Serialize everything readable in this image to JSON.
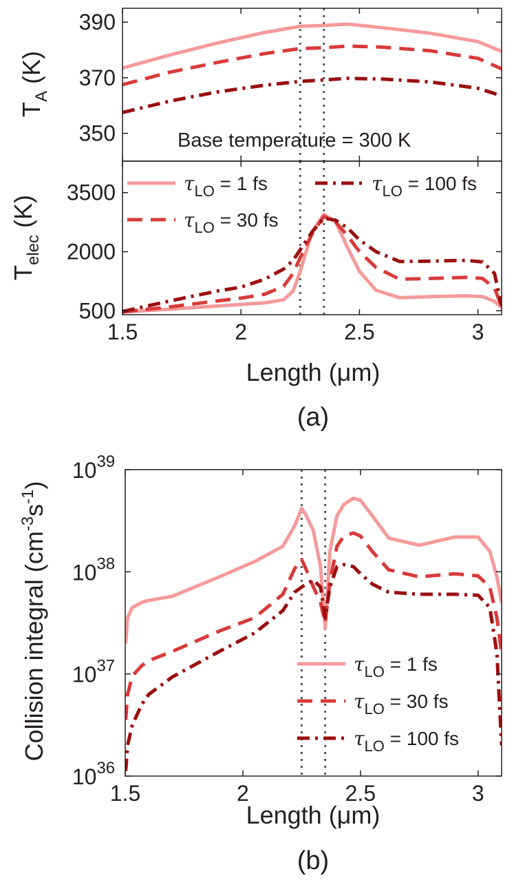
{
  "figure": {
    "caption_a": "(a)",
    "caption_b": "(b)"
  },
  "chart_data": [
    {
      "type": "line",
      "panel": "a-top",
      "ylabel_main": "T",
      "ylabel_sub": "A",
      "ylabel_unit": " (K)",
      "ylim": [
        340,
        395
      ],
      "yticks": [
        350,
        370,
        390
      ],
      "xlim": [
        1.5,
        3.1
      ],
      "annotation": "Base temperature = 300 K",
      "vlines": [
        2.25,
        2.35
      ],
      "grid": false,
      "series": [
        {
          "name": "τLO = 1 fs",
          "color": "#f59a9a",
          "dash": "solid",
          "x": [
            1.5,
            1.7,
            1.9,
            2.1,
            2.25,
            2.35,
            2.45,
            2.6,
            2.8,
            3.0,
            3.1
          ],
          "y": [
            373.5,
            378.2,
            382.5,
            386.3,
            388.5,
            388.8,
            389.3,
            388.0,
            386.0,
            383.0,
            379.5
          ]
        },
        {
          "name": "τLO = 30 fs",
          "color": "#d93a3a",
          "dash": "dash",
          "x": [
            1.5,
            1.7,
            1.9,
            2.1,
            2.25,
            2.35,
            2.45,
            2.6,
            2.8,
            3.0,
            3.1
          ],
          "y": [
            367.5,
            372.0,
            375.5,
            378.7,
            380.5,
            380.8,
            381.4,
            381.0,
            379.7,
            377.0,
            373.2
          ]
        },
        {
          "name": "τLO = 100 fs",
          "color": "#9b0f0f",
          "dash": "dashdot",
          "x": [
            1.5,
            1.7,
            1.9,
            2.1,
            2.25,
            2.35,
            2.45,
            2.6,
            2.8,
            3.0,
            3.1
          ],
          "y": [
            357.5,
            361.6,
            364.9,
            367.3,
            368.7,
            369.2,
            369.8,
            369.5,
            368.5,
            366.2,
            363.5
          ]
        }
      ]
    },
    {
      "type": "line",
      "panel": "a-bottom",
      "ylabel_main": "T",
      "ylabel_sub": "elec",
      "ylabel_unit": " (K)",
      "xlabel": "Length (μm)",
      "ylim": [
        400,
        4300
      ],
      "yticks": [
        500,
        2000,
        3500
      ],
      "xticks": [
        1.5,
        2,
        2.5,
        3
      ],
      "xlim": [
        1.5,
        3.1
      ],
      "vlines": [
        2.25,
        2.35
      ],
      "grid": false,
      "legend": [
        "τLO = 1 fs",
        "τLO = 30 fs",
        "τLO = 100 fs"
      ],
      "legend_position": "top",
      "series": [
        {
          "name": "τLO = 1 fs",
          "color": "#f59a9a",
          "dash": "solid",
          "x": [
            1.5,
            1.7,
            1.9,
            2.0,
            2.1,
            2.18,
            2.22,
            2.25,
            2.3,
            2.35,
            2.4,
            2.45,
            2.5,
            2.57,
            2.67,
            2.8,
            2.95,
            3.02,
            3.07,
            3.1
          ],
          "y": [
            470,
            540,
            620,
            660,
            700,
            780,
            1000,
            1500,
            2500,
            2950,
            2750,
            2100,
            1500,
            1020,
            830,
            860,
            880,
            860,
            740,
            580
          ]
        },
        {
          "name": "τLO = 30 fs",
          "color": "#d93a3a",
          "dash": "dash",
          "x": [
            1.5,
            1.7,
            1.9,
            2.0,
            2.1,
            2.18,
            2.22,
            2.25,
            2.3,
            2.35,
            2.4,
            2.45,
            2.5,
            2.57,
            2.67,
            2.8,
            2.95,
            3.02,
            3.07,
            3.1
          ],
          "y": [
            470,
            600,
            750,
            820,
            920,
            1120,
            1450,
            1850,
            2450,
            2900,
            2750,
            2400,
            2000,
            1600,
            1300,
            1320,
            1350,
            1320,
            1080,
            600
          ]
        },
        {
          "name": "τLO = 100 fs",
          "color": "#9b0f0f",
          "dash": "dashdot",
          "x": [
            1.5,
            1.7,
            1.9,
            2.0,
            2.1,
            2.18,
            2.22,
            2.25,
            2.3,
            2.35,
            2.4,
            2.45,
            2.5,
            2.57,
            2.67,
            2.8,
            2.95,
            3.02,
            3.07,
            3.1
          ],
          "y": [
            480,
            750,
            1000,
            1100,
            1300,
            1560,
            1780,
            2050,
            2500,
            2850,
            2800,
            2600,
            2300,
            2000,
            1750,
            1760,
            1780,
            1740,
            1450,
            620
          ]
        }
      ]
    },
    {
      "type": "line",
      "panel": "b",
      "ylabel": "Collision integral (cm",
      "ylabel_sup1": "-3",
      "ylabel_mid": "s",
      "ylabel_sup2": "-1",
      "ylabel_end": ")",
      "xlabel": "Length (μm)",
      "yscale": "log",
      "ylim": [
        1e+36,
        1e+39
      ],
      "ytick_base": "10",
      "ytick_exponents": [
        "36",
        "37",
        "38",
        "39"
      ],
      "xticks": [
        1.5,
        2,
        2.5,
        3
      ],
      "xlim": [
        1.5,
        3.1
      ],
      "vlines": [
        2.25,
        2.35
      ],
      "grid": false,
      "legend": [
        "τLO = 1 fs",
        "τLO = 30 fs",
        "τLO = 100 fs"
      ],
      "legend_position": "lower right",
      "series": [
        {
          "name": "τLO = 1 fs",
          "color": "#f59a9a",
          "dash": "solid",
          "x": [
            1.502,
            1.51,
            1.53,
            1.57,
            1.6,
            1.7,
            1.9,
            2.05,
            2.17,
            2.22,
            2.25,
            2.27,
            2.3,
            2.33,
            2.35,
            2.37,
            2.4,
            2.43,
            2.47,
            2.5,
            2.55,
            2.62,
            2.75,
            2.9,
            3.0,
            3.05,
            3.08,
            3.1
          ],
          "y": [
            37.3,
            37.55,
            37.65,
            37.7,
            37.72,
            37.76,
            37.95,
            38.1,
            38.25,
            38.45,
            38.62,
            38.55,
            38.4,
            38.05,
            37.45,
            38.2,
            38.55,
            38.66,
            38.72,
            38.7,
            38.55,
            38.33,
            38.26,
            38.34,
            38.34,
            38.2,
            37.95,
            37.7
          ]
        },
        {
          "name": "τLO = 30 fs",
          "color": "#d93a3a",
          "dash": "dash",
          "x": [
            1.502,
            1.51,
            1.53,
            1.57,
            1.6,
            1.7,
            1.9,
            2.05,
            2.17,
            2.22,
            2.25,
            2.27,
            2.3,
            2.33,
            2.35,
            2.37,
            2.4,
            2.43,
            2.47,
            2.5,
            2.55,
            2.62,
            2.75,
            2.9,
            3.0,
            3.05,
            3.08,
            3.1
          ],
          "y": [
            36.55,
            36.8,
            36.98,
            37.08,
            37.13,
            37.22,
            37.42,
            37.55,
            37.78,
            38.03,
            38.12,
            38.02,
            37.85,
            37.7,
            37.5,
            37.9,
            38.25,
            38.35,
            38.38,
            38.35,
            38.2,
            38.02,
            37.95,
            37.98,
            37.96,
            37.85,
            37.55,
            37.2
          ]
        },
        {
          "name": "τLO = 100 fs",
          "color": "#9b0f0f",
          "dash": "dashdot",
          "x": [
            1.502,
            1.51,
            1.53,
            1.57,
            1.6,
            1.7,
            1.9,
            2.05,
            2.17,
            2.22,
            2.25,
            2.27,
            2.3,
            2.33,
            2.35,
            2.37,
            2.4,
            2.43,
            2.47,
            2.5,
            2.55,
            2.62,
            2.75,
            2.9,
            3.0,
            3.05,
            3.08,
            3.1
          ],
          "y": [
            36.05,
            36.3,
            36.5,
            36.7,
            36.8,
            36.97,
            37.22,
            37.4,
            37.62,
            37.8,
            37.85,
            37.88,
            37.92,
            37.85,
            37.55,
            37.85,
            38.05,
            38.07,
            38.05,
            37.98,
            37.88,
            37.8,
            37.78,
            37.78,
            37.77,
            37.65,
            37.2,
            36.3
          ]
        }
      ]
    }
  ]
}
